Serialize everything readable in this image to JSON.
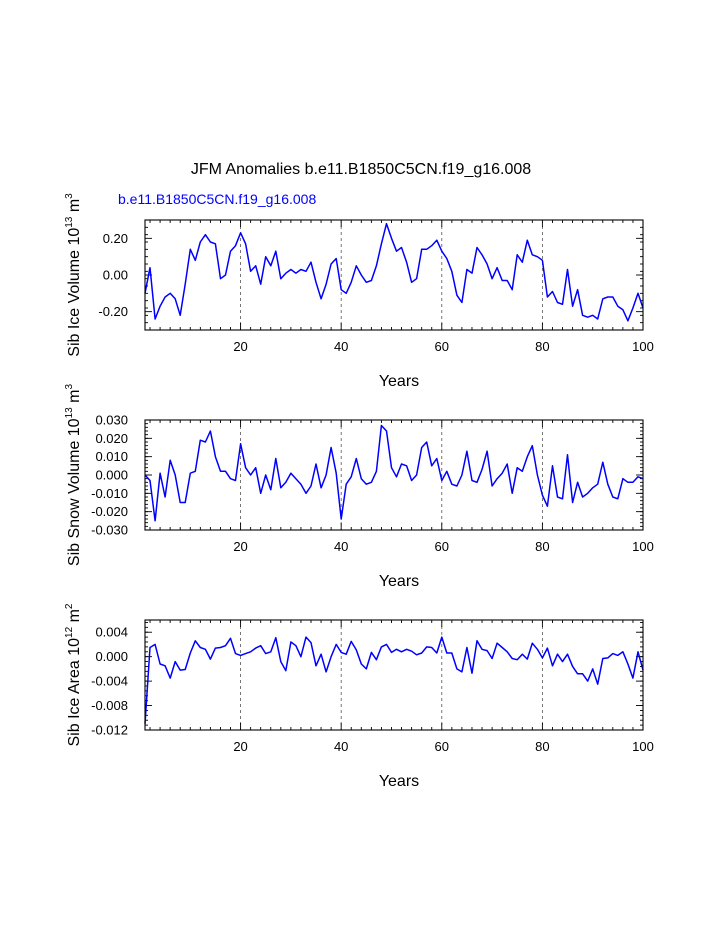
{
  "figure": {
    "title": "JFM Anomalies b.e11.B1850C5CN.f19_g16.008",
    "case_label": "b.e11.B1850C5CN.f19_g16.008",
    "colors": {
      "series": "#0000ff",
      "axes": "#000000",
      "case_label": "#0000ff"
    }
  },
  "chart_data": [
    {
      "type": "line",
      "id": "ice-volume",
      "xlabel": "Years",
      "ylabel": "Sib Ice Volume 10",
      "ylabel_exp": "13",
      "ylabel_unit": " m",
      "ylabel_unit_exp": "3",
      "xlim": [
        1,
        100
      ],
      "ylim": [
        -0.3,
        0.3
      ],
      "xticks": [
        20,
        40,
        60,
        80,
        100
      ],
      "yticks": [
        -0.2,
        0.0,
        0.2
      ],
      "ytick_labels": [
        "-0.20",
        "0.00",
        "0.20"
      ],
      "grid_x": [
        20,
        40,
        60,
        80
      ],
      "series": [
        {
          "name": "b.e11.B1850C5CN.f19_g16.008",
          "values": [
            -0.1,
            0.04,
            -0.24,
            -0.17,
            -0.12,
            -0.1,
            -0.13,
            -0.22,
            -0.05,
            0.14,
            0.08,
            0.18,
            0.22,
            0.18,
            0.17,
            -0.02,
            0.0,
            0.13,
            0.16,
            0.23,
            0.17,
            0.02,
            0.05,
            -0.05,
            0.1,
            0.05,
            0.13,
            -0.02,
            0.01,
            0.03,
            0.01,
            0.03,
            0.02,
            0.07,
            -0.04,
            -0.13,
            -0.05,
            0.06,
            0.09,
            -0.08,
            -0.1,
            -0.04,
            0.05,
            0.0,
            -0.04,
            -0.03,
            0.05,
            0.17,
            0.28,
            0.2,
            0.13,
            0.15,
            0.07,
            -0.04,
            -0.02,
            0.14,
            0.14,
            0.16,
            0.19,
            0.13,
            0.09,
            0.02,
            -0.11,
            -0.15,
            0.03,
            0.01,
            0.15,
            0.11,
            0.06,
            -0.02,
            0.04,
            -0.03,
            -0.03,
            -0.08,
            0.11,
            0.07,
            0.19,
            0.11,
            0.1,
            0.08,
            -0.12,
            -0.09,
            -0.15,
            -0.16,
            0.03,
            -0.17,
            -0.08,
            -0.22,
            -0.23,
            -0.22,
            -0.24,
            -0.13,
            -0.12,
            -0.12,
            -0.17,
            -0.19,
            -0.25,
            -0.18,
            -0.1,
            -0.18
          ]
        }
      ]
    },
    {
      "type": "line",
      "id": "snow-volume",
      "xlabel": "Years",
      "ylabel": "Sib Snow Volume 10",
      "ylabel_exp": "13",
      "ylabel_unit": " m",
      "ylabel_unit_exp": "3",
      "xlim": [
        1,
        100
      ],
      "ylim": [
        -0.03,
        0.03
      ],
      "xticks": [
        20,
        40,
        60,
        80,
        100
      ],
      "yticks": [
        -0.03,
        -0.02,
        -0.01,
        0.0,
        0.01,
        0.02,
        0.03
      ],
      "ytick_labels": [
        "-0.030",
        "-0.020",
        "-0.010",
        "0.000",
        "0.010",
        "0.020",
        "0.030"
      ],
      "grid_x": [
        20,
        40,
        60,
        80
      ],
      "series": [
        {
          "name": "b.e11.B1850C5CN.f19_g16.008",
          "values": [
            0.0,
            -0.003,
            -0.025,
            0.001,
            -0.012,
            0.008,
            0.0,
            -0.015,
            -0.015,
            0.001,
            0.002,
            0.019,
            0.018,
            0.024,
            0.01,
            0.002,
            0.002,
            -0.002,
            -0.003,
            0.017,
            0.004,
            0.0,
            0.004,
            -0.01,
            0.0,
            -0.008,
            0.009,
            -0.007,
            -0.004,
            0.001,
            -0.002,
            -0.005,
            -0.01,
            -0.006,
            0.006,
            -0.007,
            0.0,
            0.015,
            0.001,
            -0.024,
            -0.005,
            -0.001,
            0.009,
            -0.002,
            -0.005,
            -0.004,
            0.002,
            0.027,
            0.024,
            0.004,
            -0.001,
            0.006,
            0.005,
            -0.003,
            0.0,
            0.015,
            0.018,
            0.005,
            0.009,
            -0.003,
            0.002,
            -0.005,
            -0.006,
            0.0,
            0.013,
            -0.003,
            -0.004,
            0.003,
            0.013,
            -0.006,
            -0.002,
            0.001,
            0.006,
            -0.01,
            0.004,
            0.002,
            0.01,
            0.016,
            0.0,
            -0.011,
            -0.017,
            0.005,
            -0.012,
            -0.013,
            0.011,
            -0.015,
            -0.004,
            -0.012,
            -0.01,
            -0.007,
            -0.005,
            0.007,
            -0.005,
            -0.012,
            -0.013,
            -0.002,
            -0.004,
            -0.004,
            -0.001,
            -0.002
          ]
        }
      ]
    },
    {
      "type": "line",
      "id": "ice-area",
      "xlabel": "Years",
      "ylabel": "Sib Ice Area 10",
      "ylabel_exp": "12",
      "ylabel_unit": " m",
      "ylabel_unit_exp": "2",
      "xlim": [
        1,
        100
      ],
      "ylim": [
        -0.012,
        0.006
      ],
      "xticks": [
        20,
        40,
        60,
        80,
        100
      ],
      "yticks": [
        -0.012,
        -0.008,
        -0.004,
        0.0,
        0.004
      ],
      "ytick_labels": [
        "-0.012",
        "-0.008",
        "-0.004",
        "0.000",
        "0.004"
      ],
      "grid_x": [
        20,
        40,
        60,
        80
      ],
      "series": [
        {
          "name": "b.e11.B1850C5CN.f19_g16.008",
          "values": [
            -0.011,
            0.0015,
            0.002,
            -0.0012,
            -0.0015,
            -0.0035,
            -0.0008,
            -0.0022,
            -0.0021,
            0.0006,
            0.0026,
            0.0015,
            0.0012,
            -0.0004,
            0.0014,
            0.0015,
            0.0018,
            0.003,
            0.0005,
            0.0002,
            0.0005,
            0.0008,
            0.0014,
            0.0018,
            0.0005,
            0.0008,
            0.0031,
            -0.0008,
            -0.0023,
            0.0024,
            0.0018,
            0.0,
            0.0032,
            0.0023,
            -0.0015,
            0.0004,
            -0.0025,
            0.0,
            0.002,
            0.0007,
            0.0004,
            0.0025,
            0.0011,
            -0.0012,
            -0.002,
            0.0007,
            -0.0005,
            0.0016,
            0.002,
            0.0007,
            0.0012,
            0.0008,
            0.0012,
            0.0009,
            0.0003,
            0.0006,
            0.0016,
            0.0015,
            0.0006,
            0.0032,
            0.0006,
            0.0006,
            -0.002,
            -0.0025,
            0.0015,
            -0.0027,
            0.0026,
            0.0012,
            0.001,
            -0.0003,
            0.0022,
            0.0015,
            0.0008,
            -0.0003,
            -0.0005,
            0.0004,
            -0.0004,
            0.0022,
            0.0012,
            -0.0002,
            0.0014,
            -0.0015,
            0.0004,
            -0.0008,
            0.0004,
            -0.0016,
            -0.0028,
            -0.0028,
            -0.004,
            -0.002,
            -0.0045,
            -0.0003,
            -0.0002,
            0.0005,
            0.0002,
            0.0008,
            -0.0012,
            -0.0035,
            0.0008,
            -0.0022
          ]
        }
      ]
    }
  ]
}
